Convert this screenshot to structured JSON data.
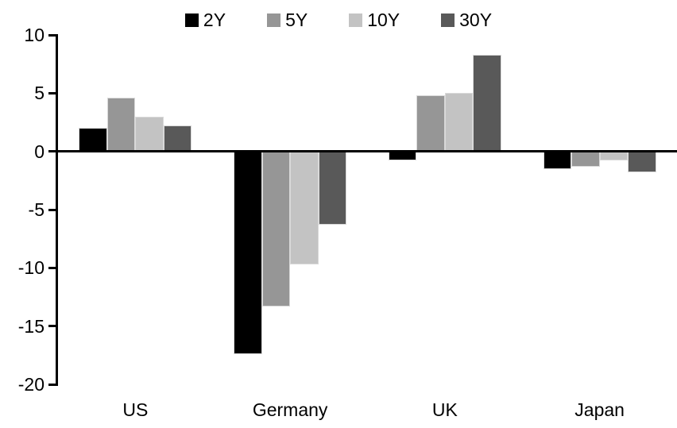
{
  "chart_data": {
    "type": "bar",
    "title": "",
    "xlabel": "",
    "ylabel": "",
    "categories": [
      "US",
      "Germany",
      "UK",
      "Japan"
    ],
    "series": [
      {
        "name": "2Y",
        "color": "#000000",
        "values": [
          2.0,
          -17.4,
          -0.8,
          -1.5
        ]
      },
      {
        "name": "5Y",
        "color": "#969696",
        "values": [
          4.6,
          -13.3,
          4.8,
          -1.3
        ]
      },
      {
        "name": "10Y",
        "color": "#c3c3c3",
        "values": [
          3.0,
          -9.7,
          5.0,
          -0.8
        ]
      },
      {
        "name": "30Y",
        "color": "#595959",
        "values": [
          2.2,
          -6.3,
          8.3,
          -1.8
        ]
      }
    ],
    "ylim": [
      -20,
      10
    ],
    "yticks": [
      10,
      5,
      0,
      -5,
      -10,
      -15,
      -20
    ],
    "grid": false,
    "legend_position": "top-center",
    "axis_color": "#000000",
    "background_color": "#ffffff",
    "bar_border_color": "#d9d9d9"
  }
}
